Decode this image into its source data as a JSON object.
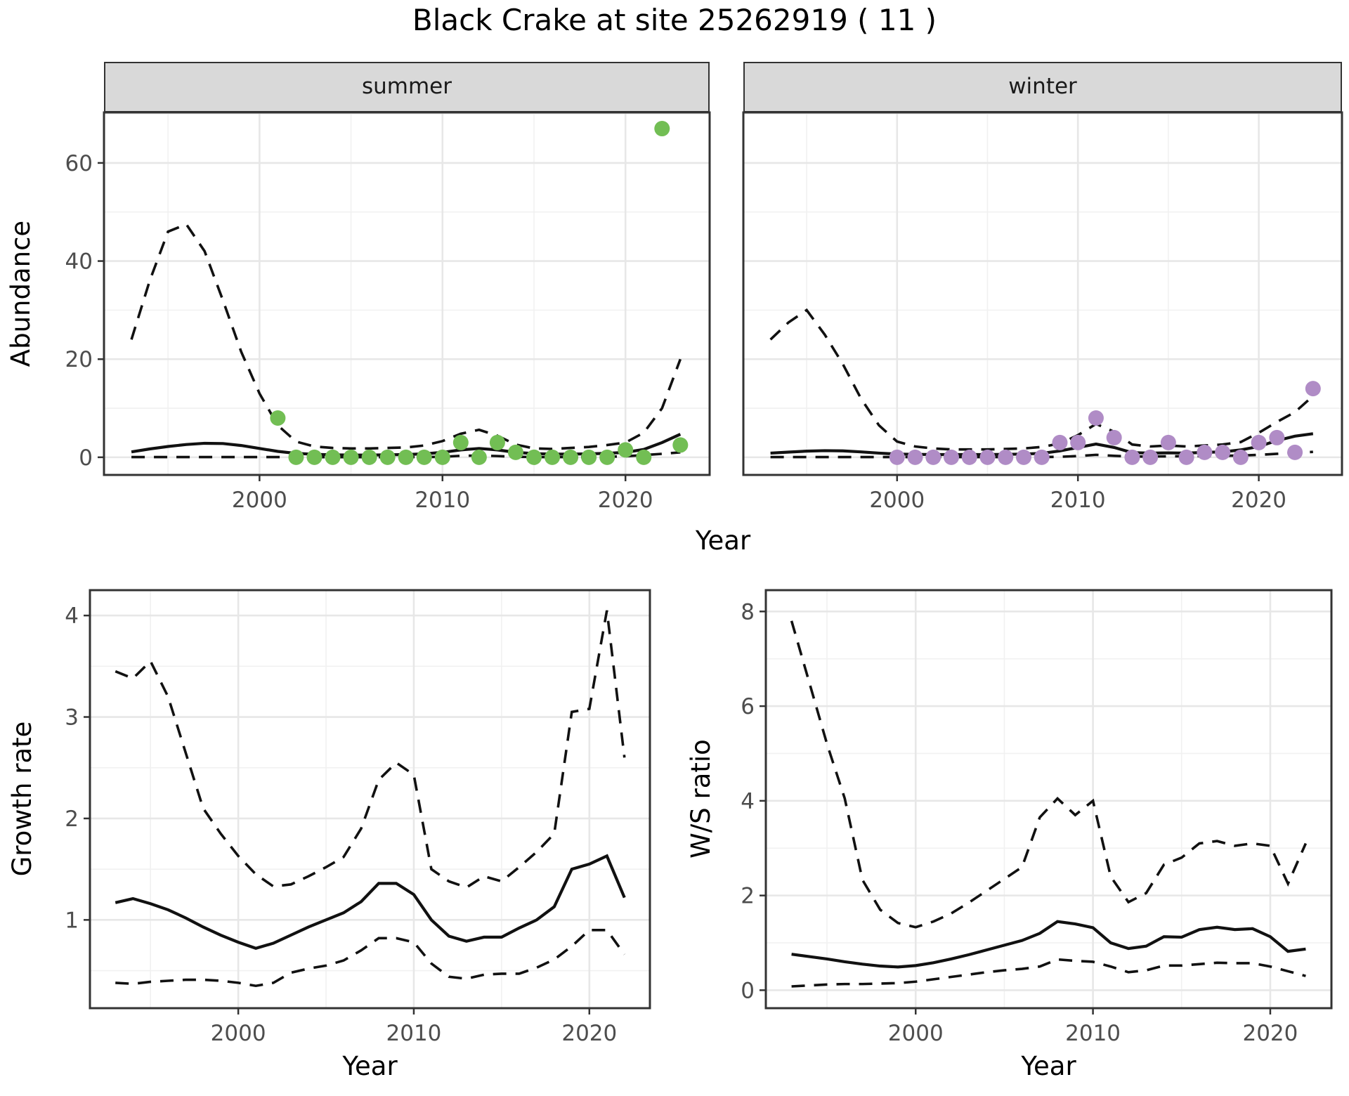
{
  "title": "Black Crake at site 25262919 ( 11 )",
  "colors": {
    "summer_points": "#72BE54",
    "winter_points": "#B08CC6",
    "line": "#111111",
    "panel_border": "#333333",
    "grid_major": "#E7E7E7",
    "grid_minor": "#F1F1F1",
    "strip_bg": "#D9D9D9",
    "tick_text": "#4D4D4D"
  },
  "top_row": {
    "ylabel": "Abundance",
    "xlabel": "Year"
  },
  "chart_data": [
    {
      "id": "abundance_summer",
      "type": "line",
      "facet": "summer",
      "ylabel": "Abundance",
      "xlabel": "Year",
      "xlim": [
        1991.5,
        2024.6
      ],
      "ylim": [
        -3.6,
        70.3
      ],
      "xticks": [
        2000,
        2010,
        2020
      ],
      "xticks_minor": [
        1995,
        2005,
        2015
      ],
      "yticks": [
        0,
        20,
        40,
        60
      ],
      "yticks_minor": [
        10,
        30,
        50,
        70
      ],
      "series": [
        {
          "name": "upper-ci",
          "style": "dashed",
          "x": [
            1993,
            1994,
            1995,
            1996,
            1997,
            1998,
            1999,
            2000,
            2001,
            2002,
            2003,
            2004,
            2005,
            2006,
            2007,
            2008,
            2009,
            2010,
            2011,
            2012,
            2013,
            2014,
            2015,
            2016,
            2017,
            2018,
            2019,
            2020,
            2021,
            2022,
            2023
          ],
          "y": [
            24,
            36,
            46,
            47.5,
            42,
            32,
            21.5,
            13,
            6.5,
            3.2,
            2.2,
            1.9,
            1.8,
            1.8,
            1.9,
            2.0,
            2.4,
            3.3,
            4.8,
            5.6,
            4.4,
            2.6,
            1.8,
            1.7,
            1.9,
            2.1,
            2.5,
            3.0,
            5.0,
            10,
            20
          ]
        },
        {
          "name": "mean",
          "style": "solid",
          "x": [
            1993,
            1994,
            1995,
            1996,
            1997,
            1998,
            1999,
            2000,
            2001,
            2002,
            2003,
            2004,
            2005,
            2006,
            2007,
            2008,
            2009,
            2010,
            2011,
            2012,
            2013,
            2014,
            2015,
            2016,
            2017,
            2018,
            2019,
            2020,
            2021,
            2022,
            2023
          ],
          "y": [
            1.1,
            1.7,
            2.2,
            2.6,
            2.85,
            2.8,
            2.4,
            1.8,
            1.2,
            0.8,
            0.6,
            0.5,
            0.45,
            0.45,
            0.5,
            0.55,
            0.7,
            1.0,
            1.5,
            1.8,
            1.5,
            1.0,
            0.75,
            0.65,
            0.65,
            0.7,
            0.8,
            1.0,
            1.6,
            3.0,
            4.7
          ]
        },
        {
          "name": "lower-ci",
          "style": "dashed",
          "x": [
            1993,
            1994,
            1995,
            1996,
            1997,
            1998,
            1999,
            2000,
            2001,
            2002,
            2003,
            2004,
            2005,
            2006,
            2007,
            2008,
            2009,
            2010,
            2011,
            2012,
            2013,
            2014,
            2015,
            2016,
            2017,
            2018,
            2019,
            2020,
            2021,
            2022,
            2023
          ],
          "y": [
            0.05,
            0.05,
            0.05,
            0.05,
            0.05,
            0.05,
            0.05,
            0.05,
            0.05,
            0.03,
            0.03,
            0.03,
            0.03,
            0.03,
            0.03,
            0.03,
            0.05,
            0.1,
            0.3,
            0.35,
            0.25,
            0.1,
            0.05,
            0.05,
            0.05,
            0.05,
            0.1,
            0.2,
            0.45,
            0.7,
            1.0
          ]
        }
      ],
      "points": {
        "name": "summer-observations",
        "color": "#72BE54",
        "x": [
          2001,
          2002,
          2003,
          2004,
          2005,
          2006,
          2007,
          2008,
          2009,
          2010,
          2011,
          2012,
          2013,
          2014,
          2015,
          2016,
          2017,
          2018,
          2019,
          2020,
          2021,
          2022,
          2023
        ],
        "y": [
          8,
          0,
          0,
          0,
          0,
          0,
          0,
          0,
          0,
          0,
          3,
          0,
          3,
          1,
          0,
          0,
          0,
          0,
          0,
          1.5,
          0,
          67,
          2.5
        ]
      }
    },
    {
      "id": "abundance_winter",
      "type": "line",
      "facet": "winter",
      "ylabel": "Abundance",
      "xlabel": "Year",
      "xlim": [
        1991.5,
        2024.6
      ],
      "ylim": [
        -3.6,
        70.3
      ],
      "xticks": [
        2000,
        2010,
        2020
      ],
      "xticks_minor": [
        1995,
        2005,
        2015
      ],
      "yticks": [
        0,
        20,
        40,
        60
      ],
      "yticks_minor": [
        10,
        30,
        50,
        70
      ],
      "series": [
        {
          "name": "upper-ci",
          "style": "dashed",
          "x": [
            1993,
            1994,
            1995,
            1996,
            1997,
            1998,
            1999,
            2000,
            2001,
            2002,
            2003,
            2004,
            2005,
            2006,
            2007,
            2008,
            2009,
            2010,
            2011,
            2012,
            2013,
            2014,
            2015,
            2016,
            2017,
            2018,
            2019,
            2020,
            2021,
            2022,
            2023
          ],
          "y": [
            24,
            27.5,
            30,
            25,
            19,
            12,
            6.5,
            3.2,
            2.2,
            1.8,
            1.6,
            1.6,
            1.6,
            1.7,
            1.8,
            2.1,
            2.8,
            4.5,
            6.8,
            5.2,
            2.6,
            2.2,
            2.4,
            2.2,
            2.4,
            2.6,
            3.1,
            5.0,
            7.2,
            9.2,
            12.5
          ]
        },
        {
          "name": "mean",
          "style": "solid",
          "x": [
            1993,
            1994,
            1995,
            1996,
            1997,
            1998,
            1999,
            2000,
            2001,
            2002,
            2003,
            2004,
            2005,
            2006,
            2007,
            2008,
            2009,
            2010,
            2011,
            2012,
            2013,
            2014,
            2015,
            2016,
            2017,
            2018,
            2019,
            2020,
            2021,
            2022,
            2023
          ],
          "y": [
            0.85,
            1.05,
            1.25,
            1.35,
            1.3,
            1.1,
            0.85,
            0.65,
            0.6,
            0.55,
            0.55,
            0.55,
            0.55,
            0.6,
            0.65,
            0.8,
            1.3,
            2.0,
            2.7,
            2.0,
            0.95,
            0.85,
            0.9,
            0.85,
            1.0,
            1.1,
            1.5,
            2.2,
            3.4,
            4.3,
            4.8
          ]
        },
        {
          "name": "lower-ci",
          "style": "dashed",
          "x": [
            1993,
            1994,
            1995,
            1996,
            1997,
            1998,
            1999,
            2000,
            2001,
            2002,
            2003,
            2004,
            2005,
            2006,
            2007,
            2008,
            2009,
            2010,
            2011,
            2012,
            2013,
            2014,
            2015,
            2016,
            2017,
            2018,
            2019,
            2020,
            2021,
            2022,
            2023
          ],
          "y": [
            0.05,
            0.05,
            0.05,
            0.05,
            0.05,
            0.05,
            0.05,
            0.05,
            0.05,
            0.05,
            0.05,
            0.05,
            0.05,
            0.05,
            0.05,
            0.05,
            0.1,
            0.25,
            0.5,
            0.3,
            0.15,
            0.15,
            0.2,
            0.2,
            0.25,
            0.3,
            0.35,
            0.5,
            0.7,
            0.9,
            1.1
          ]
        }
      ],
      "points": {
        "name": "winter-observations",
        "color": "#B08CC6",
        "x": [
          2000,
          2001,
          2002,
          2003,
          2004,
          2005,
          2006,
          2007,
          2008,
          2009,
          2010,
          2011,
          2012,
          2013,
          2014,
          2015,
          2016,
          2017,
          2018,
          2019,
          2020,
          2021,
          2022,
          2023
        ],
        "y": [
          0,
          0,
          0,
          0,
          0,
          0,
          0,
          0,
          0,
          3,
          3,
          8,
          4,
          0,
          0,
          3,
          0,
          1,
          1,
          0,
          3,
          4,
          1,
          14
        ]
      }
    },
    {
      "id": "growth_rate",
      "type": "line",
      "facet": "",
      "ylabel": "Growth rate",
      "xlabel": "Year",
      "xlim": [
        1991.55,
        2023.45
      ],
      "ylim": [
        0.13,
        4.25
      ],
      "xticks": [
        2000,
        2010,
        2020
      ],
      "xticks_minor": [
        1995,
        2005,
        2015
      ],
      "yticks": [
        1,
        2,
        3,
        4
      ],
      "yticks_minor": [
        0.5,
        1.5,
        2.5,
        3.5
      ],
      "series": [
        {
          "name": "upper-ci",
          "style": "dashed",
          "x": [
            1993,
            1994,
            1995,
            1996,
            1997,
            1998,
            1999,
            2000,
            2001,
            2002,
            2003,
            2004,
            2005,
            2006,
            2007,
            2008,
            2009,
            2010,
            2011,
            2012,
            2013,
            2014,
            2015,
            2016,
            2017,
            2018,
            2019,
            2020,
            2021,
            2022
          ],
          "y": [
            3.45,
            3.38,
            3.55,
            3.2,
            2.65,
            2.1,
            1.85,
            1.63,
            1.45,
            1.33,
            1.35,
            1.43,
            1.52,
            1.62,
            1.9,
            2.38,
            2.55,
            2.43,
            1.5,
            1.38,
            1.32,
            1.43,
            1.38,
            1.52,
            1.67,
            1.85,
            3.05,
            3.08,
            4.05,
            2.6
          ]
        },
        {
          "name": "mean",
          "style": "solid",
          "x": [
            1993,
            1994,
            1995,
            1996,
            1997,
            1998,
            1999,
            2000,
            2001,
            2002,
            2003,
            2004,
            2005,
            2006,
            2007,
            2008,
            2009,
            2010,
            2011,
            2012,
            2013,
            2014,
            2015,
            2016,
            2017,
            2018,
            2019,
            2020,
            2021,
            2022
          ],
          "y": [
            1.17,
            1.21,
            1.16,
            1.1,
            1.02,
            0.93,
            0.85,
            0.78,
            0.72,
            0.77,
            0.85,
            0.93,
            1.0,
            1.07,
            1.18,
            1.36,
            1.36,
            1.25,
            1.0,
            0.84,
            0.79,
            0.83,
            0.83,
            0.92,
            1.0,
            1.13,
            1.5,
            1.55,
            1.63,
            1.22
          ]
        },
        {
          "name": "lower-ci",
          "style": "dashed",
          "x": [
            1993,
            1994,
            1995,
            1996,
            1997,
            1998,
            1999,
            2000,
            2001,
            2002,
            2003,
            2004,
            2005,
            2006,
            2007,
            2008,
            2009,
            2010,
            2011,
            2012,
            2013,
            2014,
            2015,
            2016,
            2017,
            2018,
            2019,
            2020,
            2021,
            2022
          ],
          "y": [
            0.38,
            0.37,
            0.39,
            0.4,
            0.41,
            0.41,
            0.4,
            0.38,
            0.35,
            0.38,
            0.48,
            0.52,
            0.55,
            0.6,
            0.7,
            0.82,
            0.82,
            0.78,
            0.57,
            0.44,
            0.42,
            0.46,
            0.47,
            0.47,
            0.53,
            0.61,
            0.74,
            0.9,
            0.9,
            0.66
          ]
        }
      ],
      "points": null
    },
    {
      "id": "ws_ratio",
      "type": "line",
      "facet": "",
      "ylabel": "W/S ratio",
      "xlabel": "Year",
      "xlim": [
        1991.55,
        2023.45
      ],
      "ylim": [
        -0.38,
        8.45
      ],
      "xticks": [
        2000,
        2010,
        2020
      ],
      "xticks_minor": [
        1995,
        2005,
        2015
      ],
      "yticks": [
        0,
        2,
        4,
        6,
        8
      ],
      "yticks_minor": [
        1,
        3,
        5,
        7
      ],
      "series": [
        {
          "name": "upper-ci",
          "style": "dashed",
          "x": [
            1993,
            1994,
            1995,
            1996,
            1997,
            1998,
            1999,
            2000,
            2001,
            2002,
            2003,
            2004,
            2005,
            2006,
            2007,
            2008,
            2009,
            2010,
            2011,
            2012,
            2013,
            2014,
            2015,
            2016,
            2017,
            2018,
            2019,
            2020,
            2021,
            2022
          ],
          "y": [
            7.8,
            6.5,
            5.2,
            4.05,
            2.33,
            1.7,
            1.42,
            1.33,
            1.45,
            1.62,
            1.85,
            2.1,
            2.35,
            2.6,
            3.65,
            4.05,
            3.7,
            4.0,
            2.4,
            1.86,
            2.05,
            2.65,
            2.8,
            3.1,
            3.15,
            3.05,
            3.1,
            3.05,
            2.25,
            3.1
          ]
        },
        {
          "name": "mean",
          "style": "solid",
          "x": [
            1993,
            1994,
            1995,
            1996,
            1997,
            1998,
            1999,
            2000,
            2001,
            2002,
            2003,
            2004,
            2005,
            2006,
            2007,
            2008,
            2009,
            2010,
            2011,
            2012,
            2013,
            2014,
            2015,
            2016,
            2017,
            2018,
            2019,
            2020,
            2021,
            2022
          ],
          "y": [
            0.76,
            0.71,
            0.66,
            0.6,
            0.55,
            0.51,
            0.49,
            0.52,
            0.58,
            0.66,
            0.75,
            0.85,
            0.95,
            1.05,
            1.2,
            1.45,
            1.4,
            1.32,
            1.0,
            0.88,
            0.93,
            1.13,
            1.12,
            1.28,
            1.33,
            1.28,
            1.3,
            1.13,
            0.82,
            0.87
          ]
        },
        {
          "name": "lower-ci",
          "style": "dashed",
          "x": [
            1993,
            1994,
            1995,
            1996,
            1997,
            1998,
            1999,
            2000,
            2001,
            2002,
            2003,
            2004,
            2005,
            2006,
            2007,
            2008,
            2009,
            2010,
            2011,
            2012,
            2013,
            2014,
            2015,
            2016,
            2017,
            2018,
            2019,
            2020,
            2021,
            2022
          ],
          "y": [
            0.08,
            0.1,
            0.12,
            0.13,
            0.13,
            0.14,
            0.15,
            0.18,
            0.23,
            0.28,
            0.33,
            0.38,
            0.42,
            0.45,
            0.5,
            0.65,
            0.62,
            0.6,
            0.5,
            0.38,
            0.42,
            0.52,
            0.52,
            0.55,
            0.58,
            0.57,
            0.57,
            0.5,
            0.4,
            0.3
          ]
        }
      ],
      "points": null
    }
  ]
}
